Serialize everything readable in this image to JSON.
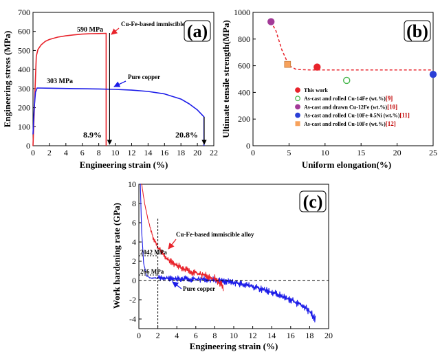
{
  "chart_data": [
    {
      "panel": "(a)",
      "type": "line",
      "xlabel": "Engineering strain (%)",
      "ylabel": "Engineering stress (MPa)",
      "xlim": [
        0,
        22
      ],
      "ylim": [
        0,
        700
      ],
      "xticks": [
        "0",
        "2",
        "4",
        "6",
        "8",
        "10",
        "12",
        "14",
        "16",
        "18",
        "20",
        "22"
      ],
      "yticks": [
        "0",
        "100",
        "200",
        "300",
        "400",
        "500",
        "600",
        "700"
      ],
      "series": [
        {
          "name": "Cu-Fe-based immiscible alloy",
          "color": "#e8232b",
          "points": [
            [
              0,
              0
            ],
            [
              0.25,
              300
            ],
            [
              0.4,
              470
            ],
            [
              0.6,
              505
            ],
            [
              1,
              530
            ],
            [
              1.5,
              548
            ],
            [
              2,
              558
            ],
            [
              3,
              570
            ],
            [
              4,
              577
            ],
            [
              5,
              582
            ],
            [
              6,
              586
            ],
            [
              7,
              588
            ],
            [
              8,
              589
            ],
            [
              8.9,
              590
            ],
            [
              8.9,
              0
            ]
          ]
        },
        {
          "name": "Pure copper",
          "color": "#1c1ce8",
          "points": [
            [
              0,
              60
            ],
            [
              0.15,
              200
            ],
            [
              0.3,
              280
            ],
            [
              0.5,
              303
            ],
            [
              2,
              302
            ],
            [
              5,
              300
            ],
            [
              8,
              298
            ],
            [
              10,
              296
            ],
            [
              12,
              292
            ],
            [
              14,
              285
            ],
            [
              16,
              272
            ],
            [
              18,
              245
            ],
            [
              19,
              220
            ],
            [
              20,
              188
            ],
            [
              20.8,
              152
            ],
            [
              20.8,
              0
            ]
          ]
        }
      ],
      "annotations": {
        "alloy_peak": "590 MPa",
        "copper_peak": "303 MPa",
        "alloy_strain": "8.9%",
        "copper_strain": "20.8%",
        "alloy_label": "Cu-Fe-based immiscible alloy",
        "copper_label": "Pure copper"
      }
    },
    {
      "panel": "(b)",
      "type": "scatter",
      "xlabel": "Uniform elongation(%)",
      "ylabel": "Ultimate tensile strength(MPa)",
      "xlim": [
        0,
        25
      ],
      "ylim": [
        0,
        1000
      ],
      "xticks": [
        "0",
        "5",
        "10",
        "15",
        "20",
        "25"
      ],
      "yticks": [
        "0",
        "200",
        "400",
        "600",
        "800",
        "1000"
      ],
      "points": [
        {
          "label": "This work",
          "ref": "",
          "x": 8.9,
          "y": 590,
          "color": "#e8232b"
        },
        {
          "label": "As-cast and rolled Cu-14Fe (wt.%)",
          "ref": "[9]",
          "x": 13,
          "y": 490,
          "color": "#43b649"
        },
        {
          "label": "As-cast and drawn Cu-12Fe (wt.%)",
          "ref": "[10]",
          "x": 2.5,
          "y": 930,
          "color": "#a23a97"
        },
        {
          "label": "As-cast and rolled Cu-10Fe-0.5Ni (wt.%)",
          "ref": "[11]",
          "x": 25,
          "y": 535,
          "color": "#2a3fd6"
        },
        {
          "label": "As-cast and rolled Cu-10Fe (wt.%)",
          "ref": "[12]",
          "x": 4.8,
          "y": 610,
          "color": "#f7a25c"
        }
      ],
      "trend": [
        [
          2.5,
          930
        ],
        [
          3.2,
          860
        ],
        [
          4,
          720
        ],
        [
          5,
          600
        ],
        [
          6,
          572
        ],
        [
          8,
          568
        ],
        [
          25,
          568
        ]
      ]
    },
    {
      "panel": "(c)",
      "type": "line",
      "xlabel": "Engineering strain (%)",
      "ylabel": "Work hardening rate (GPa)",
      "xlim": [
        0,
        20
      ],
      "ylim": [
        -5,
        10
      ],
      "xticks": [
        "0",
        "2",
        "4",
        "6",
        "8",
        "10",
        "12",
        "14",
        "16",
        "18",
        "20"
      ],
      "yticks": [
        "-4",
        "-2",
        "0",
        "2",
        "4",
        "6",
        "8",
        "10"
      ],
      "series": [
        {
          "name": "Cu-Fe-based immiscible alloy",
          "color": "#e8232b",
          "points": [
            [
              0.3,
              10
            ],
            [
              0.6,
              8
            ],
            [
              1,
              6.2
            ],
            [
              1.5,
              4.5
            ],
            [
              2,
              3.4
            ],
            [
              3,
              2.2
            ],
            [
              4,
              1.6
            ],
            [
              5,
              1.1
            ],
            [
              6,
              0.8
            ],
            [
              7,
              0.5
            ],
            [
              8,
              0.2
            ],
            [
              8.6,
              -0.3
            ],
            [
              8.9,
              -0.7
            ]
          ]
        },
        {
          "name": "Pure copper",
          "color": "#1c1ce8",
          "points": [
            [
              0.15,
              10
            ],
            [
              0.3,
              5
            ],
            [
              0.5,
              1.8
            ],
            [
              0.8,
              0.5
            ],
            [
              1.2,
              0.27
            ],
            [
              2,
              0.25
            ],
            [
              4,
              0.2
            ],
            [
              6,
              0.15
            ],
            [
              8,
              0.05
            ],
            [
              10,
              -0.2
            ],
            [
              12,
              -0.6
            ],
            [
              14,
              -1.2
            ],
            [
              16,
              -2
            ],
            [
              17,
              -2.5
            ],
            [
              18,
              -3.2
            ],
            [
              18.6,
              -4
            ]
          ]
        }
      ],
      "reference_lines": {
        "x": 2,
        "y": 0
      },
      "annotations": {
        "alloy_rate": "2042 MPa",
        "copper_rate": "266 MPa",
        "alloy_label": "Cu-Fe-based immiscible alloy",
        "copper_label": "Pure copper"
      }
    }
  ]
}
